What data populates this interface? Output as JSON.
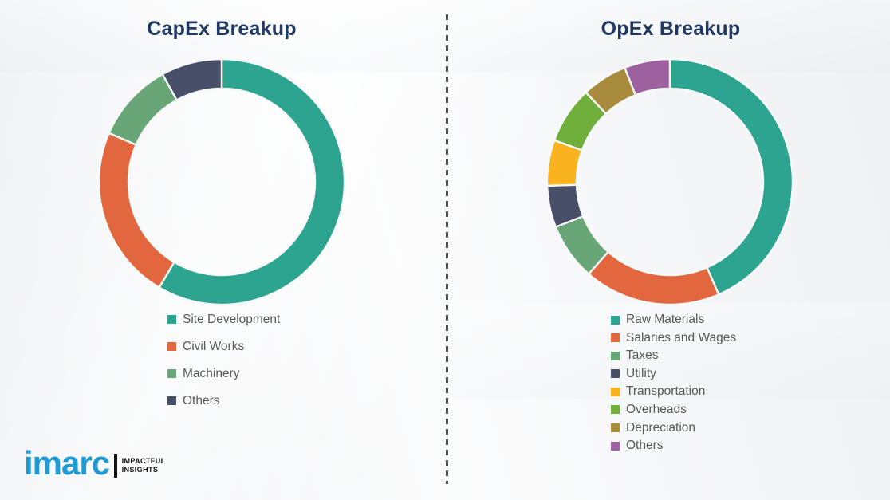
{
  "left_panel": {
    "title": "CapEx Breakup"
  },
  "right_panel": {
    "title": "OpEx Breakup"
  },
  "divider": {
    "style": "dashed-vertical",
    "color": "#4d4d4d"
  },
  "logo": {
    "brand": "imarc",
    "tagline_line1": "IMPACTFUL",
    "tagline_line2": "INSIGHTS",
    "brand_color": "#1e9bd7"
  },
  "colors": {
    "title_navy": "#1f3864",
    "legend_text": "#595959",
    "teal": "#2da48f",
    "orange": "#e2673f",
    "sage_green": "#68a577",
    "dark_slate": "#485069",
    "yellow": "#f9b31e",
    "green": "#70af3b",
    "olive": "#a98b3e",
    "purple": "#9d61a0",
    "segment_gap": "#f7f8f8"
  },
  "chart_data": [
    {
      "type": "pie",
      "subtype": "donut",
      "title": "CapEx Breakup",
      "categories": [
        "Site Development",
        "Civil Works",
        "Machinery",
        "Others"
      ],
      "values": [
        58.5,
        23,
        10.5,
        8
      ],
      "unit": "percent-estimated",
      "colors": [
        "#2da48f",
        "#e2673f",
        "#68a577",
        "#485069"
      ],
      "start_angle_deg": 0,
      "direction": "clockwise",
      "legend_position": "below-chart",
      "data_labels": false
    },
    {
      "type": "pie",
      "subtype": "donut",
      "title": "OpEx Breakup",
      "categories": [
        "Raw Materials",
        "Salaries and Wages",
        "Taxes",
        "Utility",
        "Transportation",
        "Overheads",
        "Depreciation",
        "Others"
      ],
      "values": [
        43.5,
        18,
        7.5,
        5.5,
        6,
        7.5,
        6,
        6
      ],
      "unit": "percent-estimated",
      "colors": [
        "#2da48f",
        "#e2673f",
        "#68a577",
        "#485069",
        "#f9b31e",
        "#70af3b",
        "#a98b3e",
        "#9d61a0"
      ],
      "start_angle_deg": 0,
      "direction": "clockwise",
      "legend_position": "below-chart",
      "data_labels": false
    }
  ]
}
